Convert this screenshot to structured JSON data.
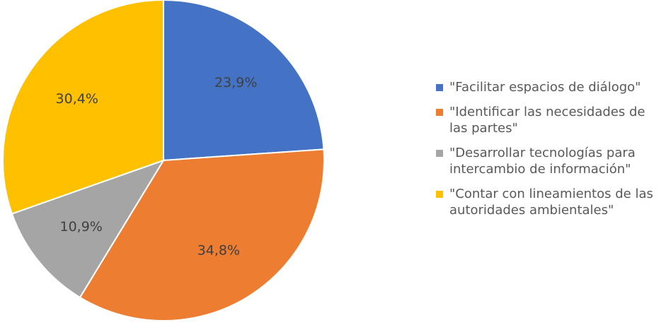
{
  "chart_data": {
    "type": "pie",
    "slices": [
      {
        "label": "\"Facilitar espacios de diálogo\"",
        "value": 23.9,
        "value_label": "23,9%",
        "color": "#4472C4"
      },
      {
        "label": "\"Identificar las necesidades de las partes\"",
        "value": 34.8,
        "value_label": "34,8%",
        "color": "#ED7D31"
      },
      {
        "label": "\"Desarrollar tecnologías para intercambio de información\"",
        "value": 10.9,
        "value_label": "10,9%",
        "color": "#A5A5A5"
      },
      {
        "label": "\"Contar con lineamientos de las autoridades ambientales\"",
        "value": 30.4,
        "value_label": "30,4%",
        "color": "#FFC000"
      }
    ],
    "start_angle": "top, clockwise",
    "legend_position": "right"
  }
}
